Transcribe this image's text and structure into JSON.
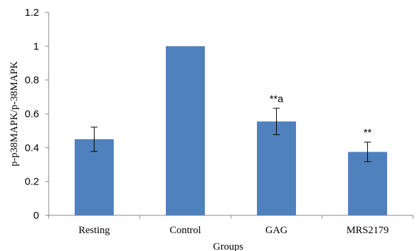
{
  "chart_data": {
    "type": "bar",
    "categories": [
      "Resting",
      "Control",
      "GAG",
      "MRS2179"
    ],
    "values": [
      0.45,
      1.0,
      0.555,
      0.375
    ],
    "error_bars": [
      0.072,
      0.0,
      0.078,
      0.058
    ],
    "annotations": [
      "",
      "",
      "**a",
      "**"
    ],
    "xlabel": "Groups",
    "ylabel": "p-p38MAPK/p-38MAPK",
    "ylim": [
      0,
      1.2
    ],
    "yticks": [
      "0",
      "0.2",
      "0.4",
      "0.6",
      "0.8",
      "1",
      "1.2"
    ],
    "bar_color": "#4f81bd",
    "grid": false,
    "legend": "none"
  }
}
